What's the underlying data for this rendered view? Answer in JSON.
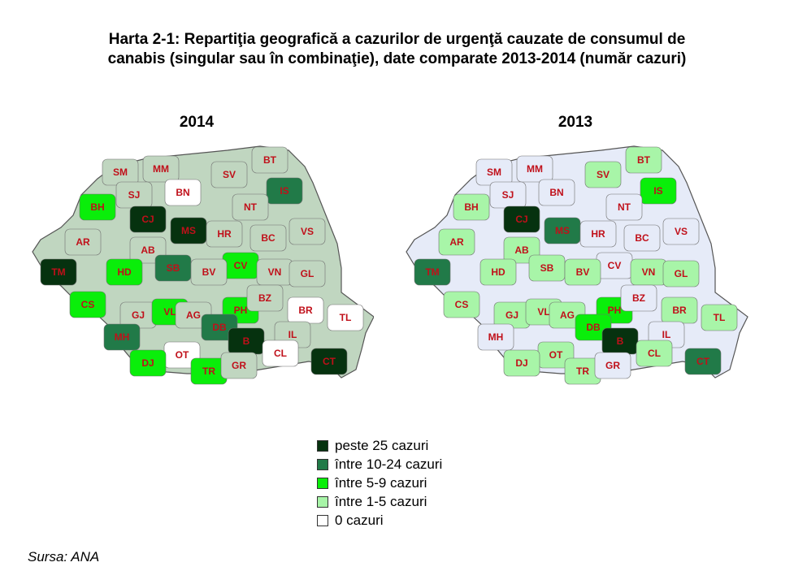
{
  "title_line1": "Harta 2-1: Repartiţia geografică a cazurilor de urgenţă cauzate de consumul de",
  "title_line2": "canabis (singular sau în combinaţie), date comparate 2013-2014 (număr cazuri)",
  "legend": [
    {
      "label": "peste 25 cazuri",
      "color": "#06320f"
    },
    {
      "label": "între 10-24 cazuri",
      "color": "#217a48"
    },
    {
      "label": "între 5-9 cazuri",
      "color": "#0aee0a"
    },
    {
      "label": "între 1-5 cazuri",
      "color": "#a8f5a8"
    },
    {
      "label": "0 cazuri",
      "color": "#ffffff"
    }
  ],
  "source": "Sursa: ANA",
  "maps": [
    {
      "year": "2014",
      "background_color": "#c0d6c0",
      "categories": {
        "peste 25 cazuri": [
          "TM",
          "CJ",
          "MS",
          "B",
          "CT"
        ],
        "între 10-24 cazuri": [
          "IS",
          "SB",
          "DB",
          "MH"
        ],
        "între 5-9 cazuri": [
          "BH",
          "HD",
          "CV",
          "CS",
          "VL",
          "PH",
          "DJ",
          "TR"
        ],
        "0 cazuri": [
          "BN",
          "BR",
          "TL",
          "OT",
          "CL"
        ]
      },
      "regions": [
        "SM",
        "MM",
        "BT",
        "SV",
        "BH",
        "SJ",
        "BN",
        "IS",
        "CJ",
        "NT",
        "AR",
        "MS",
        "HR",
        "BC",
        "VS",
        "AB",
        "TM",
        "HD",
        "SB",
        "CV",
        "BV",
        "VN",
        "GL",
        "CS",
        "GJ",
        "VL",
        "AG",
        "PH",
        "BZ",
        "BR",
        "TL",
        "DB",
        "MH",
        "IL",
        "B",
        "OT",
        "DJ",
        "TR",
        "GR",
        "CL",
        "CT"
      ]
    },
    {
      "year": "2013",
      "background_color": "#e6ebf8",
      "categories": {
        "peste 25 cazuri": [
          "CJ",
          "B"
        ],
        "între 10-24 cazuri": [
          "MS",
          "TM",
          "CT"
        ],
        "între 5-9 cazuri": [
          "IS",
          "DB",
          "PH"
        ],
        "între 1-5 cazuri": [
          "BT",
          "SV",
          "BH",
          "AR",
          "HD",
          "CS",
          "AB",
          "SB",
          "BV",
          "VN",
          "GL",
          "BR",
          "TL",
          "GJ",
          "VL",
          "AG",
          "DJ",
          "OT",
          "TR",
          "CL"
        ]
      },
      "regions": [
        "SM",
        "MM",
        "BT",
        "SV",
        "BH",
        "SJ",
        "BN",
        "IS",
        "CJ",
        "NT",
        "AR",
        "MS",
        "HR",
        "BC",
        "VS",
        "AB",
        "TM",
        "HD",
        "SB",
        "CV",
        "BV",
        "VN",
        "GL",
        "CS",
        "GJ",
        "VL",
        "AG",
        "PH",
        "BZ",
        "BR",
        "TL",
        "DB",
        "MH",
        "IL",
        "B",
        "OT",
        "DJ",
        "TR",
        "GR",
        "CL",
        "CT"
      ]
    }
  ]
}
